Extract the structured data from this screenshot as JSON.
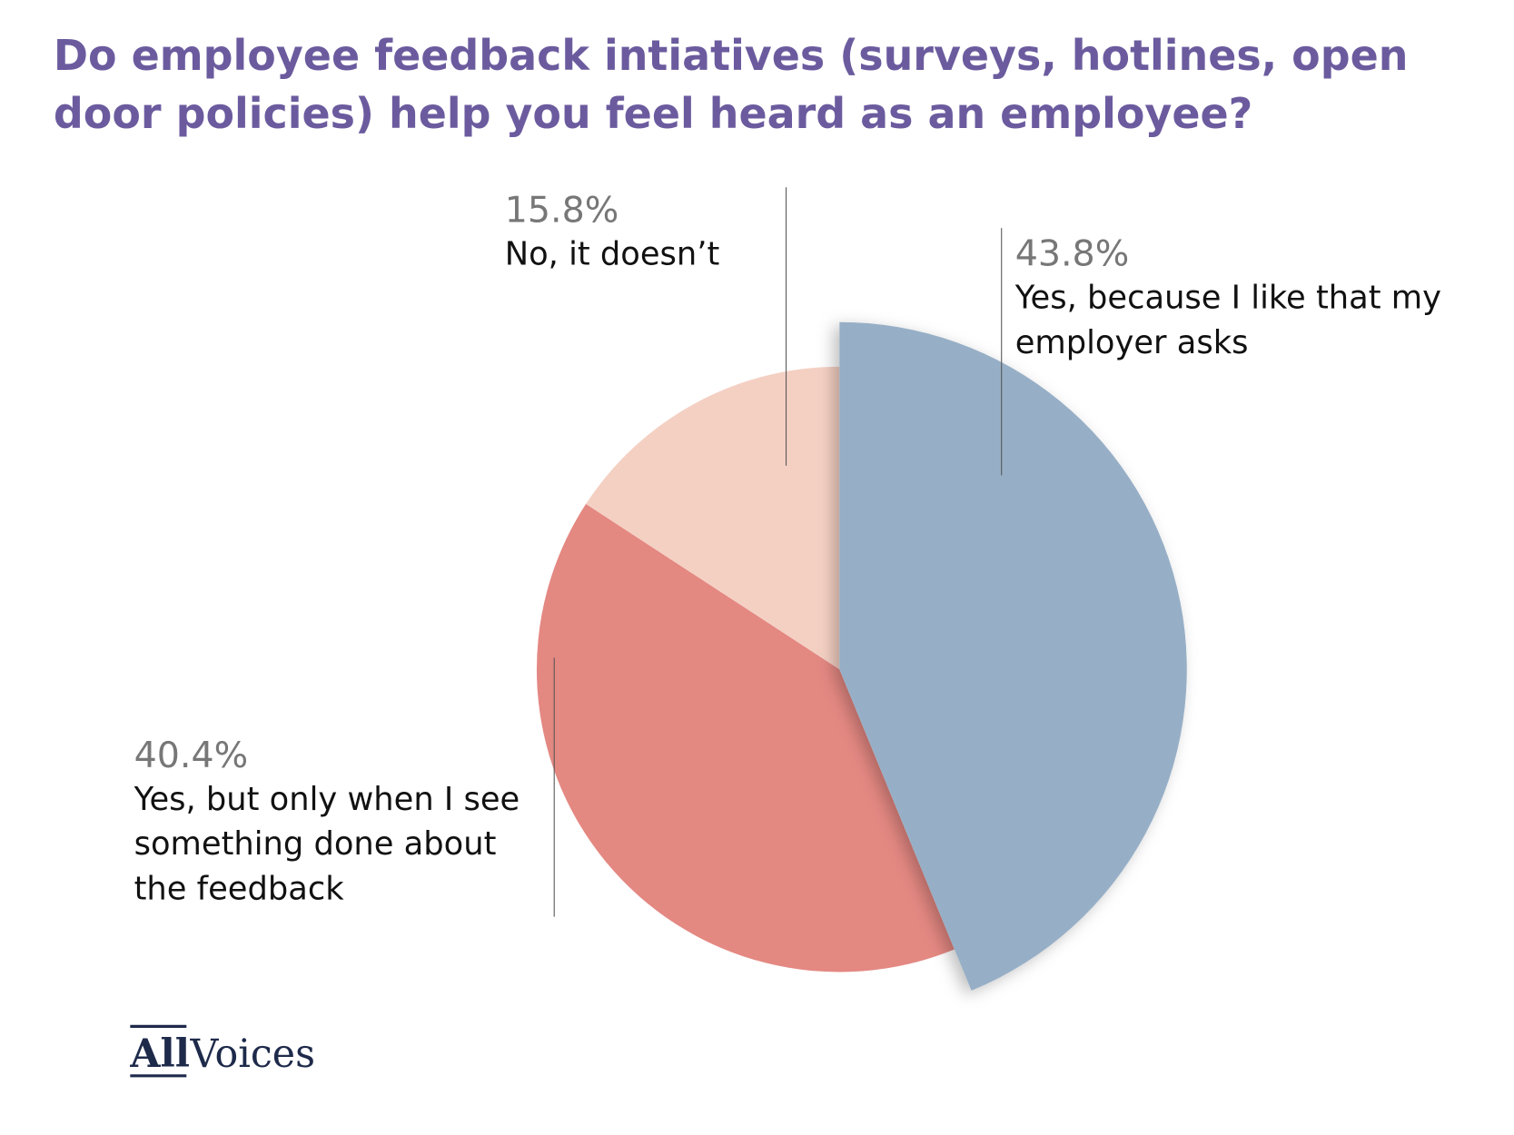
{
  "chart_data": {
    "type": "pie",
    "title": "Do employee feedback intiatives (surveys, hotlines, open door policies) help you feel heard as an employee?",
    "categories": [
      "Yes, because I like that my employer asks",
      "Yes, but only when I see something done about the feedback",
      "No, it doesn’t"
    ],
    "values": [
      43.8,
      40.4,
      15.8
    ],
    "value_labels": [
      "43.8%",
      "40.4%",
      "15.8%"
    ],
    "colors": [
      "#97afc6",
      "#e48882",
      "#f4d0c3"
    ]
  },
  "logo": [
    "All",
    "Voices"
  ]
}
